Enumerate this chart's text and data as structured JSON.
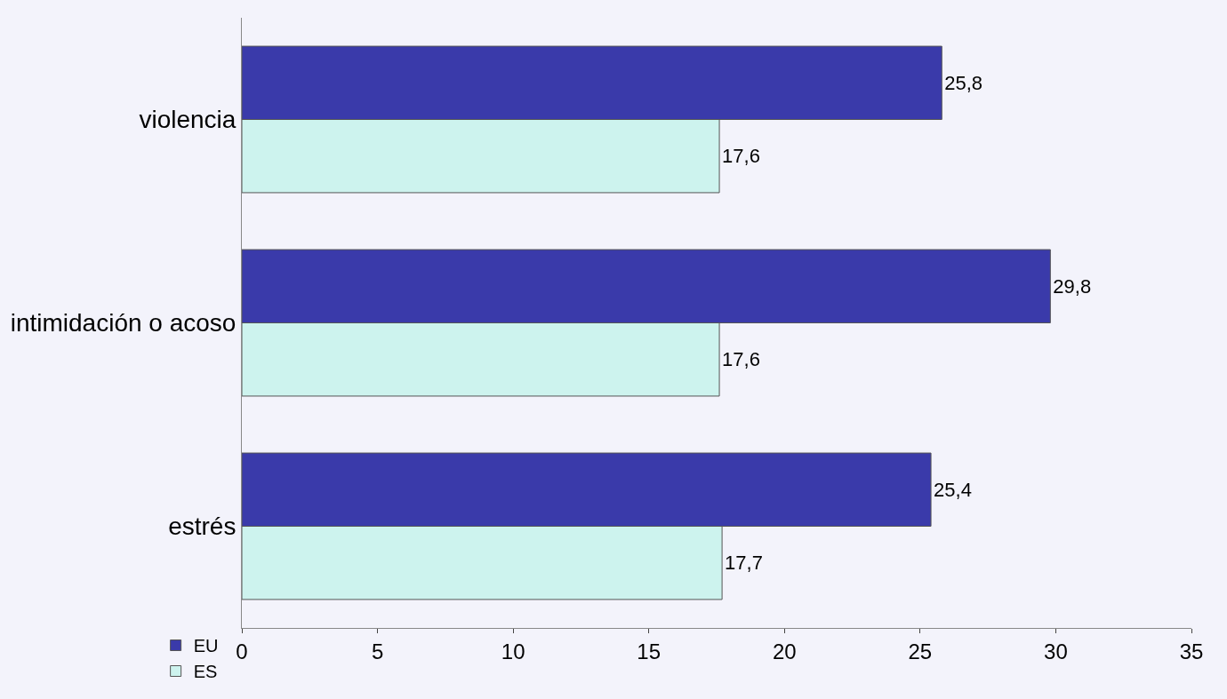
{
  "chart_data": {
    "type": "bar",
    "orientation": "horizontal",
    "categories": [
      "violencia",
      "intimidación o acoso",
      "estrés"
    ],
    "series": [
      {
        "name": "EU",
        "color": "#3a3aaa",
        "values": [
          25.8,
          29.8,
          25.4
        ],
        "value_labels": [
          "25,8",
          "29,8",
          "25,4"
        ]
      },
      {
        "name": "ES",
        "color": "#cdf3ee",
        "values": [
          17.6,
          17.6,
          17.7
        ],
        "value_labels": [
          "17,6",
          "17,6",
          "17,7"
        ]
      }
    ],
    "xlim": [
      0,
      35
    ],
    "xticks": [
      0,
      5,
      10,
      15,
      20,
      25,
      30,
      35
    ],
    "grid": false,
    "legend": "bottom left"
  }
}
